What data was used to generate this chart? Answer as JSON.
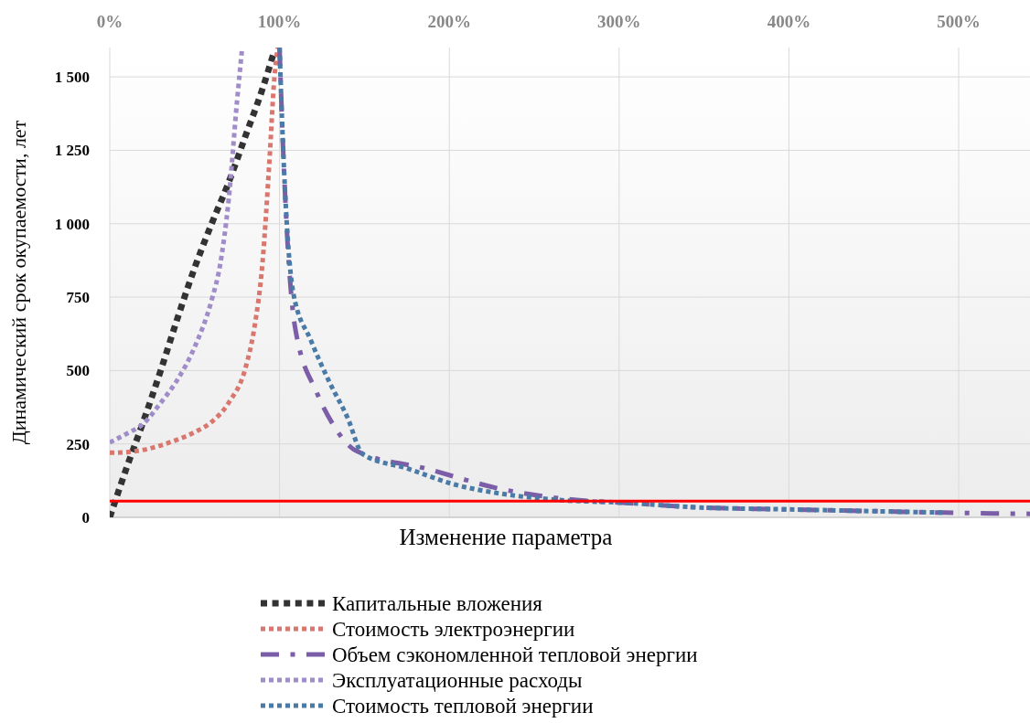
{
  "chart_data": {
    "type": "line",
    "xlabel": "Изменение параметра",
    "ylabel": "Динамический срок окупаемости, лет",
    "xlim": [
      0,
      542
    ],
    "ylim": [
      0,
      1600
    ],
    "xticks": [
      {
        "value": 0,
        "label": "0%"
      },
      {
        "value": 100,
        "label": "100%"
      },
      {
        "value": 200,
        "label": "200%"
      },
      {
        "value": 300,
        "label": "300%"
      },
      {
        "value": 400,
        "label": "400%"
      },
      {
        "value": 500,
        "label": "500%"
      }
    ],
    "yticks": [
      0,
      250,
      500,
      750,
      {
        "value": 1000,
        "label": "1 000"
      },
      {
        "value": 1250,
        "label": "1 250"
      },
      {
        "value": 1500,
        "label": "1 500"
      }
    ],
    "grid": true,
    "legend": "bottom",
    "line_style": "dotted",
    "marker": "none",
    "ref_lines": [
      {
        "axis": "y",
        "value": 55,
        "color": "#ff0000",
        "line_style": "solid"
      }
    ],
    "series": [
      {
        "name": "Капитальные вложения",
        "color": "#333333",
        "x": [
          0,
          10,
          20,
          30,
          40,
          50,
          60,
          70,
          80,
          90,
          97
        ],
        "values": [
          0,
          170,
          330,
          500,
          680,
          850,
          1000,
          1140,
          1300,
          1460,
          1590
        ]
      },
      {
        "name": "Стоимость электроэнергии",
        "color": "#d9776f",
        "x": [
          0,
          10,
          20,
          30,
          40,
          50,
          60,
          70,
          80,
          85,
          90,
          94,
          97,
          99
        ],
        "values": [
          220,
          222,
          230,
          245,
          265,
          290,
          325,
          390,
          510,
          640,
          870,
          1210,
          1500,
          1600
        ]
      },
      {
        "name": "Объем сэкономленной тепловой энергии",
        "color": "#7b5ea7",
        "line_style": "dashed",
        "x": [
          100,
          101,
          109,
          122,
          131,
          145,
          187,
          230,
          275,
          302,
          346,
          400,
          450,
          492,
          542
        ],
        "values": [
          1600,
          1425,
          652,
          424,
          321,
          227,
          165,
          97,
          59,
          50,
          34,
          27,
          21,
          16,
          12
        ]
      },
      {
        "name": "Эксплуатационные расходы",
        "color": "#a08cc8",
        "x": [
          0,
          10,
          20,
          30,
          40,
          50,
          60,
          65,
          70,
          75,
          78
        ],
        "values": [
          255,
          285,
          320,
          390,
          470,
          580,
          740,
          860,
          1080,
          1420,
          1600
        ]
      },
      {
        "name": "Стоимость тепловой энергии",
        "color": "#4a7aa6",
        "x": [
          100,
          101,
          108,
          118.5,
          129,
          140,
          149,
          176,
          203,
          230,
          265,
          302,
          346,
          400,
          450,
          492
        ],
        "values": [
          1600,
          1425,
          767,
          602,
          465,
          340,
          215,
          165,
          112,
          81,
          59,
          50,
          34,
          27,
          21,
          16
        ]
      }
    ]
  }
}
